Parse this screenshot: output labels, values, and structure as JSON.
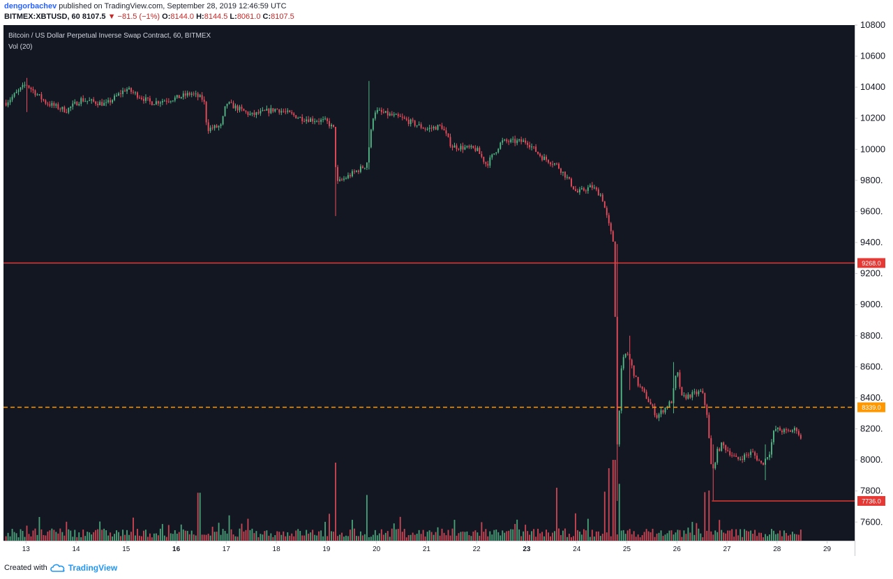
{
  "header": {
    "author": "dengorbachev",
    "published_text": "published on TradingView.com, September 28, 2019 12:46:59 UTC",
    "symbol": "BITMEX:XBTUSD, 60",
    "last": "8107.5",
    "change_arrow": "▼",
    "change": "−81.5 (−1%)",
    "o_label": "O:",
    "o_value": "8144.0",
    "h_label": "H:",
    "h_value": "8144.5",
    "l_label": "L:",
    "l_value": "8061.0",
    "c_label": "C:",
    "c_value": "8107.5"
  },
  "footer": {
    "created_with": "Created with",
    "brand": "TradingView",
    "logo_icon": "tradingview-cloud-icon"
  },
  "colors": {
    "background": "#131722",
    "up": "#53b987",
    "down": "#eb4d5c",
    "line_red": "#e53935",
    "line_orange": "#ff9800",
    "axis_text": "#b2b5be",
    "grid_line": "#2a2e39"
  },
  "chart_data": {
    "type": "candlestick",
    "title": "Bitcoin / US Dollar Perpetual Inverse Swap Contract, 60, BITMEX",
    "subtitle": "Vol (20)",
    "ylim": [
      7480,
      10800
    ],
    "yticks": [
      7600,
      7800,
      8000,
      8200,
      8400,
      8600,
      8800,
      9000,
      9200,
      9400,
      9600,
      9800,
      10000,
      10200,
      10400,
      10600,
      10800
    ],
    "ytick_labels": [
      "7600.",
      "7800.",
      "8000.",
      "8200.",
      "8400.",
      "8600.",
      "8800.",
      "9000.",
      "9200.",
      "9400.",
      "9600.",
      "9800.",
      "10000",
      "10200",
      "10400",
      "10600",
      "10800"
    ],
    "xlim_days": [
      12.55,
      29.55
    ],
    "xticks": [
      {
        "day": 13,
        "label": "13",
        "bold": false
      },
      {
        "day": 14,
        "label": "14",
        "bold": false
      },
      {
        "day": 15,
        "label": "15",
        "bold": false
      },
      {
        "day": 16,
        "label": "16",
        "bold": true
      },
      {
        "day": 17,
        "label": "17",
        "bold": false
      },
      {
        "day": 18,
        "label": "18",
        "bold": false
      },
      {
        "day": 19,
        "label": "19",
        "bold": false
      },
      {
        "day": 20,
        "label": "20",
        "bold": false
      },
      {
        "day": 21,
        "label": "21",
        "bold": false
      },
      {
        "day": 22,
        "label": "22",
        "bold": false
      },
      {
        "day": 23,
        "label": "23",
        "bold": true
      },
      {
        "day": 24,
        "label": "24",
        "bold": false
      },
      {
        "day": 25,
        "label": "25",
        "bold": false
      },
      {
        "day": 26,
        "label": "26",
        "bold": false
      },
      {
        "day": 27,
        "label": "27",
        "bold": false
      },
      {
        "day": 28,
        "label": "28",
        "bold": false
      },
      {
        "day": 29,
        "label": "29",
        "bold": false
      }
    ],
    "bar_hours": 1,
    "start_day": 12.6,
    "key_closes": [
      [
        12.6,
        10300
      ],
      [
        13.0,
        10420
      ],
      [
        13.4,
        10300
      ],
      [
        13.8,
        10250
      ],
      [
        14.1,
        10320
      ],
      [
        14.6,
        10290
      ],
      [
        15.0,
        10390
      ],
      [
        15.5,
        10300
      ],
      [
        16.0,
        10330
      ],
      [
        16.3,
        10360
      ],
      [
        16.55,
        10320
      ],
      [
        16.62,
        10130
      ],
      [
        16.9,
        10150
      ],
      [
        17.0,
        10300
      ],
      [
        17.5,
        10220
      ],
      [
        18.0,
        10260
      ],
      [
        18.5,
        10200
      ],
      [
        19.0,
        10180
      ],
      [
        19.15,
        10130
      ],
      [
        19.2,
        9780
      ],
      [
        19.6,
        9860
      ],
      [
        19.8,
        9900
      ],
      [
        19.95,
        10250
      ],
      [
        20.5,
        10200
      ],
      [
        21.0,
        10130
      ],
      [
        21.3,
        10150
      ],
      [
        21.5,
        10020
      ],
      [
        22.0,
        10000
      ],
      [
        22.2,
        9900
      ],
      [
        22.5,
        10050
      ],
      [
        23.0,
        10050
      ],
      [
        23.3,
        9950
      ],
      [
        23.6,
        9900
      ],
      [
        23.8,
        9820
      ],
      [
        24.0,
        9720
      ],
      [
        24.3,
        9760
      ],
      [
        24.5,
        9700
      ],
      [
        24.65,
        9500
      ],
      [
        24.75,
        9380
      ],
      [
        24.8,
        8050
      ],
      [
        24.9,
        8620
      ],
      [
        25.0,
        8700
      ],
      [
        25.2,
        8500
      ],
      [
        25.4,
        8400
      ],
      [
        25.6,
        8280
      ],
      [
        25.9,
        8380
      ],
      [
        26.0,
        8580
      ],
      [
        26.1,
        8400
      ],
      [
        26.5,
        8440
      ],
      [
        26.6,
        8300
      ],
      [
        26.7,
        7900
      ],
      [
        26.8,
        8050
      ],
      [
        26.9,
        8100
      ],
      [
        27.2,
        8000
      ],
      [
        27.5,
        8050
      ],
      [
        27.7,
        7970
      ],
      [
        27.85,
        8050
      ],
      [
        27.95,
        8200
      ],
      [
        28.2,
        8180
      ],
      [
        28.4,
        8200
      ],
      [
        28.5,
        8108
      ]
    ],
    "spikes": [
      {
        "day": 13.0,
        "high": 10460,
        "low": 10240
      },
      {
        "day": 19.2,
        "high": 9800,
        "low": 9570
      },
      {
        "day": 19.85,
        "high": 10440,
        "low": 9870
      },
      {
        "day": 24.8,
        "high": 9390,
        "low": 7736
      },
      {
        "day": 25.05,
        "high": 8800,
        "low": 8450
      },
      {
        "day": 25.95,
        "high": 8630,
        "low": 8300
      },
      {
        "day": 26.72,
        "high": 8100,
        "low": 7740
      },
      {
        "day": 27.75,
        "high": 8100,
        "low": 7870
      }
    ],
    "volume_spikes": [
      {
        "day": 16.45,
        "volume": 8.6
      },
      {
        "day": 19.2,
        "volume": 14.0
      },
      {
        "day": 19.8,
        "volume": 8.2
      },
      {
        "day": 23.6,
        "volume": 9.5
      },
      {
        "day": 24.55,
        "volume": 8.8
      },
      {
        "day": 24.65,
        "volume": 13.0
      },
      {
        "day": 24.75,
        "volume": 14.5
      },
      {
        "day": 24.85,
        "volume": 10.2
      },
      {
        "day": 26.55,
        "volume": 8.7
      },
      {
        "day": 26.65,
        "volume": 9.0
      }
    ],
    "horizontal_lines": [
      {
        "price": 9268.0,
        "label": "9268.0",
        "color": "#e53935",
        "style": "solid",
        "from_day": 12.55
      },
      {
        "price": 8339.0,
        "label": "8339.0",
        "color": "#ff9800",
        "style": "dashed",
        "from_day": 12.55
      },
      {
        "price": 7736.0,
        "label": "7736.0",
        "color": "#e53935",
        "style": "solid",
        "from_day": 26.7
      }
    ],
    "grid": false
  }
}
